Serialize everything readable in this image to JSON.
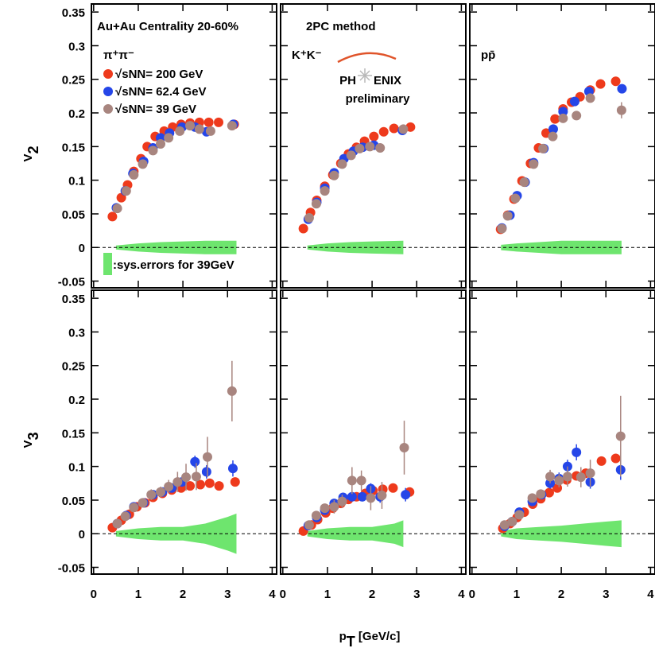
{
  "x_label": {
    "text": "p",
    "sub": "T",
    "rest": " [GeV/c]"
  },
  "chart_data": [
    {
      "type": "scatter",
      "title": "Au+Au Centrality 20-60%",
      "label": "π⁺π⁻",
      "y_label": {
        "text": "V",
        "sub": "2"
      },
      "xlim": [
        -0.05,
        4.1
      ],
      "ylim": [
        -0.06,
        0.362
      ],
      "xticks": [
        0,
        1,
        2,
        3,
        4
      ],
      "yticks": [
        -0.05,
        0,
        0.05,
        0.1,
        0.15,
        0.2,
        0.25,
        0.3,
        0.35
      ],
      "band": {
        "name": ":sys.errors for 39GeV",
        "color": "#6ee56e",
        "x": [
          0.5,
          1,
          1.5,
          2,
          2.5,
          3,
          3.2
        ],
        "values": [
          0.003,
          0.006,
          0.008,
          0.009,
          0.01,
          0.01,
          0.01
        ]
      },
      "series": [
        {
          "name": "√sNN= 200 GeV",
          "color": "#ee3a1c",
          "x": [
            0.42,
            0.62,
            0.76,
            0.9,
            1.06,
            1.2,
            1.38,
            1.58,
            1.77,
            1.96,
            2.16,
            2.37,
            2.58,
            2.8,
            3.15
          ],
          "values": [
            0.046,
            0.074,
            0.093,
            0.113,
            0.132,
            0.15,
            0.165,
            0.173,
            0.179,
            0.183,
            0.185,
            0.186,
            0.186,
            0.186,
            0.183
          ]
        },
        {
          "name": "√sNN= 62.4 GeV",
          "color": "#2546e8",
          "x": [
            0.51,
            0.71,
            0.88,
            1.12,
            1.33,
            1.5,
            1.7,
            1.98,
            2.27,
            2.53,
            3.13
          ],
          "values": [
            0.059,
            0.084,
            0.11,
            0.128,
            0.148,
            0.163,
            0.17,
            0.179,
            0.179,
            0.172,
            0.183
          ]
        },
        {
          "name": "√sNN= 39 GeV",
          "color": "#a8857f",
          "x": [
            0.53,
            0.73,
            0.9,
            1.1,
            1.33,
            1.5,
            1.68,
            1.93,
            2.16,
            2.37,
            2.62,
            3.1
          ],
          "values": [
            0.058,
            0.084,
            0.108,
            0.124,
            0.144,
            0.154,
            0.163,
            0.173,
            0.181,
            0.176,
            0.173,
            0.181
          ]
        }
      ]
    },
    {
      "type": "scatter",
      "title": "2PC method",
      "label": "K⁺K⁻",
      "logo": {
        "left": "PH",
        "right": "ENIX",
        "sub": "preliminary"
      },
      "xlim": [
        -0.05,
        4.1
      ],
      "ylim": [
        -0.06,
        0.362
      ],
      "xticks": [
        0,
        1,
        2,
        3,
        4
      ],
      "yticks": [
        -0.05,
        0,
        0.05,
        0.1,
        0.15,
        0.2,
        0.25,
        0.3,
        0.35
      ],
      "band": {
        "color": "#6ee56e",
        "x": [
          0.55,
          1,
          1.5,
          2,
          2.7
        ],
        "values": [
          0.003,
          0.006,
          0.008,
          0.009,
          0.01
        ]
      },
      "series": [
        {
          "color": "#ee3a1c",
          "x": [
            0.46,
            0.62,
            0.76,
            0.94,
            1.12,
            1.3,
            1.47,
            1.65,
            1.83,
            2.04,
            2.26,
            2.49,
            2.86
          ],
          "values": [
            0.028,
            0.052,
            0.07,
            0.091,
            0.108,
            0.125,
            0.139,
            0.149,
            0.158,
            0.165,
            0.172,
            0.177,
            0.179
          ]
        },
        {
          "color": "#2546e8",
          "x": [
            0.57,
            0.76,
            0.94,
            1.15,
            1.37,
            1.58,
            1.79,
            2.04,
            2.68
          ],
          "values": [
            0.042,
            0.067,
            0.088,
            0.111,
            0.132,
            0.143,
            0.149,
            0.152,
            0.174
          ]
        },
        {
          "color": "#a8857f",
          "x": [
            0.59,
            0.75,
            0.94,
            1.15,
            1.33,
            1.53,
            1.72,
            1.95,
            2.18,
            2.7
          ],
          "values": [
            0.044,
            0.065,
            0.084,
            0.107,
            0.124,
            0.137,
            0.147,
            0.15,
            0.148,
            0.176
          ]
        }
      ]
    },
    {
      "type": "scatter",
      "label": "pp̄",
      "xlim": [
        -0.05,
        4.1
      ],
      "ylim": [
        -0.06,
        0.362
      ],
      "xticks": [
        0,
        1,
        2,
        3,
        4
      ],
      "yticks": [
        -0.05,
        0,
        0.05,
        0.1,
        0.15,
        0.2,
        0.25,
        0.3,
        0.35
      ],
      "band": {
        "color": "#6ee56e",
        "x": [
          0.65,
          1,
          1.5,
          2,
          2.5,
          3.35
        ],
        "values": [
          0.004,
          0.006,
          0.008,
          0.01,
          0.01,
          0.01
        ]
      },
      "series": [
        {
          "color": "#ee3a1c",
          "x": [
            0.64,
            0.8,
            0.94,
            1.12,
            1.31,
            1.49,
            1.66,
            1.86,
            2.04,
            2.23,
            2.42,
            2.65,
            2.88,
            3.22
          ],
          "values": [
            0.027,
            0.048,
            0.072,
            0.099,
            0.125,
            0.148,
            0.17,
            0.191,
            0.206,
            0.216,
            0.224,
            0.234,
            0.243,
            0.247
          ]
        },
        {
          "color": "#2546e8",
          "x": [
            0.67,
            0.85,
            1.01,
            1.19,
            1.38,
            1.61,
            1.82,
            2.04,
            2.3,
            2.62,
            3.36
          ],
          "values": [
            0.029,
            0.048,
            0.077,
            0.097,
            0.126,
            0.147,
            0.176,
            0.202,
            0.217,
            0.232,
            0.236
          ]
        },
        {
          "color": "#a8857f",
          "x": [
            0.67,
            0.8,
            0.97,
            1.17,
            1.38,
            1.59,
            1.81,
            2.04,
            2.34,
            2.65,
            3.35
          ],
          "values": [
            0.028,
            0.047,
            0.073,
            0.097,
            0.124,
            0.147,
            0.165,
            0.192,
            0.196,
            0.222,
            0.204
          ],
          "errors": [
            0.001,
            0.001,
            0.001,
            0.001,
            0.002,
            0.002,
            0.002,
            0.003,
            0.003,
            0.004,
            0.012
          ]
        }
      ]
    },
    {
      "type": "scatter",
      "y_label": {
        "text": "V",
        "sub": "3"
      },
      "xlim": [
        -0.05,
        4.1
      ],
      "ylim": [
        -0.06,
        0.362
      ],
      "xticks": [
        0,
        1,
        2,
        3,
        4
      ],
      "yticks": [
        -0.05,
        0,
        0.05,
        0.1,
        0.15,
        0.2,
        0.25,
        0.3,
        0.35
      ],
      "band": {
        "color": "#6ee56e",
        "x": [
          0.5,
          1,
          1.5,
          2,
          2.5,
          3,
          3.2
        ],
        "values": [
          0.004,
          0.008,
          0.01,
          0.01,
          0.015,
          0.025,
          0.03
        ]
      },
      "series": [
        {
          "color": "#ee3a1c",
          "x": [
            0.42,
            0.62,
            0.8,
            0.97,
            1.15,
            1.33,
            1.54,
            1.75,
            1.96,
            2.16,
            2.39,
            2.6,
            2.81,
            3.17
          ],
          "values": [
            0.009,
            0.02,
            0.029,
            0.04,
            0.046,
            0.054,
            0.06,
            0.065,
            0.068,
            0.071,
            0.073,
            0.075,
            0.071,
            0.077
          ]
        },
        {
          "color": "#2546e8",
          "x": [
            0.53,
            0.73,
            0.9,
            1.12,
            1.33,
            1.54,
            1.75,
            1.98,
            2.27,
            2.53,
            3.12
          ],
          "values": [
            0.015,
            0.027,
            0.04,
            0.046,
            0.058,
            0.062,
            0.068,
            0.077,
            0.107,
            0.092,
            0.097
          ],
          "errors": [
            0.002,
            0.002,
            0.003,
            0.003,
            0.004,
            0.005,
            0.006,
            0.007,
            0.009,
            0.01,
            0.012
          ]
        },
        {
          "color": "#a8857f",
          "x": [
            0.53,
            0.71,
            0.9,
            1.1,
            1.29,
            1.5,
            1.68,
            1.88,
            2.07,
            2.3,
            2.55,
            3.1
          ],
          "values": [
            0.015,
            0.026,
            0.039,
            0.046,
            0.058,
            0.062,
            0.07,
            0.077,
            0.084,
            0.085,
            0.114,
            0.212
          ],
          "errors": [
            0.003,
            0.003,
            0.004,
            0.005,
            0.008,
            0.008,
            0.01,
            0.015,
            0.02,
            0.02,
            0.03,
            0.045
          ]
        }
      ]
    },
    {
      "type": "scatter",
      "xlim": [
        -0.05,
        4.1
      ],
      "ylim": [
        -0.06,
        0.362
      ],
      "xticks": [
        0,
        1,
        2,
        3,
        4
      ],
      "yticks": [
        -0.05,
        0,
        0.05,
        0.1,
        0.15,
        0.2,
        0.25,
        0.3,
        0.35
      ],
      "band": {
        "color": "#6ee56e",
        "x": [
          0.55,
          1,
          1.5,
          2,
          2.5,
          2.7
        ],
        "values": [
          0.004,
          0.008,
          0.01,
          0.01,
          0.015,
          0.02
        ]
      },
      "series": [
        {
          "color": "#ee3a1c",
          "x": [
            0.46,
            0.64,
            0.78,
            0.96,
            1.12,
            1.3,
            1.47,
            1.65,
            1.85,
            2.02,
            2.24,
            2.47,
            2.84
          ],
          "values": [
            0.004,
            0.013,
            0.021,
            0.031,
            0.038,
            0.045,
            0.051,
            0.055,
            0.06,
            0.064,
            0.066,
            0.068,
            0.062
          ]
        },
        {
          "color": "#2546e8",
          "x": [
            0.57,
            0.76,
            0.94,
            1.15,
            1.35,
            1.55,
            1.78,
            1.97,
            2.18,
            2.75
          ],
          "values": [
            0.012,
            0.024,
            0.035,
            0.045,
            0.054,
            0.055,
            0.055,
            0.067,
            0.055,
            0.058
          ],
          "errors": [
            0.002,
            0.003,
            0.003,
            0.004,
            0.005,
            0.006,
            0.007,
            0.008,
            0.009,
            0.01
          ]
        },
        {
          "color": "#a8857f",
          "x": [
            0.59,
            0.75,
            0.94,
            1.15,
            1.33,
            1.55,
            1.76,
            1.97,
            2.22,
            2.72
          ],
          "values": [
            0.013,
            0.027,
            0.038,
            0.04,
            0.048,
            0.079,
            0.079,
            0.053,
            0.057,
            0.128
          ],
          "errors": [
            0.003,
            0.004,
            0.006,
            0.01,
            0.01,
            0.02,
            0.015,
            0.018,
            0.02,
            0.04
          ]
        }
      ]
    },
    {
      "type": "scatter",
      "xlim": [
        -0.05,
        4.1
      ],
      "ylim": [
        -0.06,
        0.362
      ],
      "xticks": [
        0,
        1,
        2,
        3,
        4
      ],
      "yticks": [
        -0.05,
        0,
        0.05,
        0.1,
        0.15,
        0.2,
        0.25,
        0.3,
        0.35
      ],
      "band": {
        "color": "#6ee56e",
        "x": [
          0.65,
          1,
          1.5,
          2,
          2.5,
          3,
          3.35
        ],
        "values": [
          0.004,
          0.008,
          0.01,
          0.012,
          0.015,
          0.018,
          0.02
        ]
      },
      "series": [
        {
          "color": "#ee3a1c",
          "x": [
            0.69,
            0.85,
            1.01,
            1.17,
            1.36,
            1.54,
            1.73,
            1.91,
            2.12,
            2.34,
            2.55,
            2.9,
            3.22
          ],
          "values": [
            0.008,
            0.015,
            0.024,
            0.032,
            0.044,
            0.052,
            0.061,
            0.068,
            0.08,
            0.086,
            0.09,
            0.108,
            0.112
          ]
        },
        {
          "color": "#2546e8",
          "x": [
            0.73,
            0.9,
            1.06,
            1.35,
            1.56,
            1.75,
            1.95,
            2.14,
            2.34,
            2.65,
            3.33
          ],
          "values": [
            0.011,
            0.018,
            0.032,
            0.048,
            0.058,
            0.075,
            0.082,
            0.1,
            0.121,
            0.077,
            0.095
          ],
          "errors": [
            0.002,
            0.003,
            0.004,
            0.005,
            0.006,
            0.008,
            0.009,
            0.01,
            0.012,
            0.01,
            0.015
          ]
        },
        {
          "color": "#a8857f",
          "x": [
            0.73,
            0.9,
            1.06,
            1.35,
            1.54,
            1.75,
            1.95,
            2.14,
            2.44,
            2.65,
            3.33
          ],
          "values": [
            0.013,
            0.018,
            0.028,
            0.053,
            0.059,
            0.085,
            0.079,
            0.085,
            0.084,
            0.09,
            0.145
          ],
          "errors": [
            0.003,
            0.003,
            0.004,
            0.005,
            0.006,
            0.01,
            0.01,
            0.015,
            0.015,
            0.02,
            0.06
          ]
        }
      ]
    }
  ]
}
